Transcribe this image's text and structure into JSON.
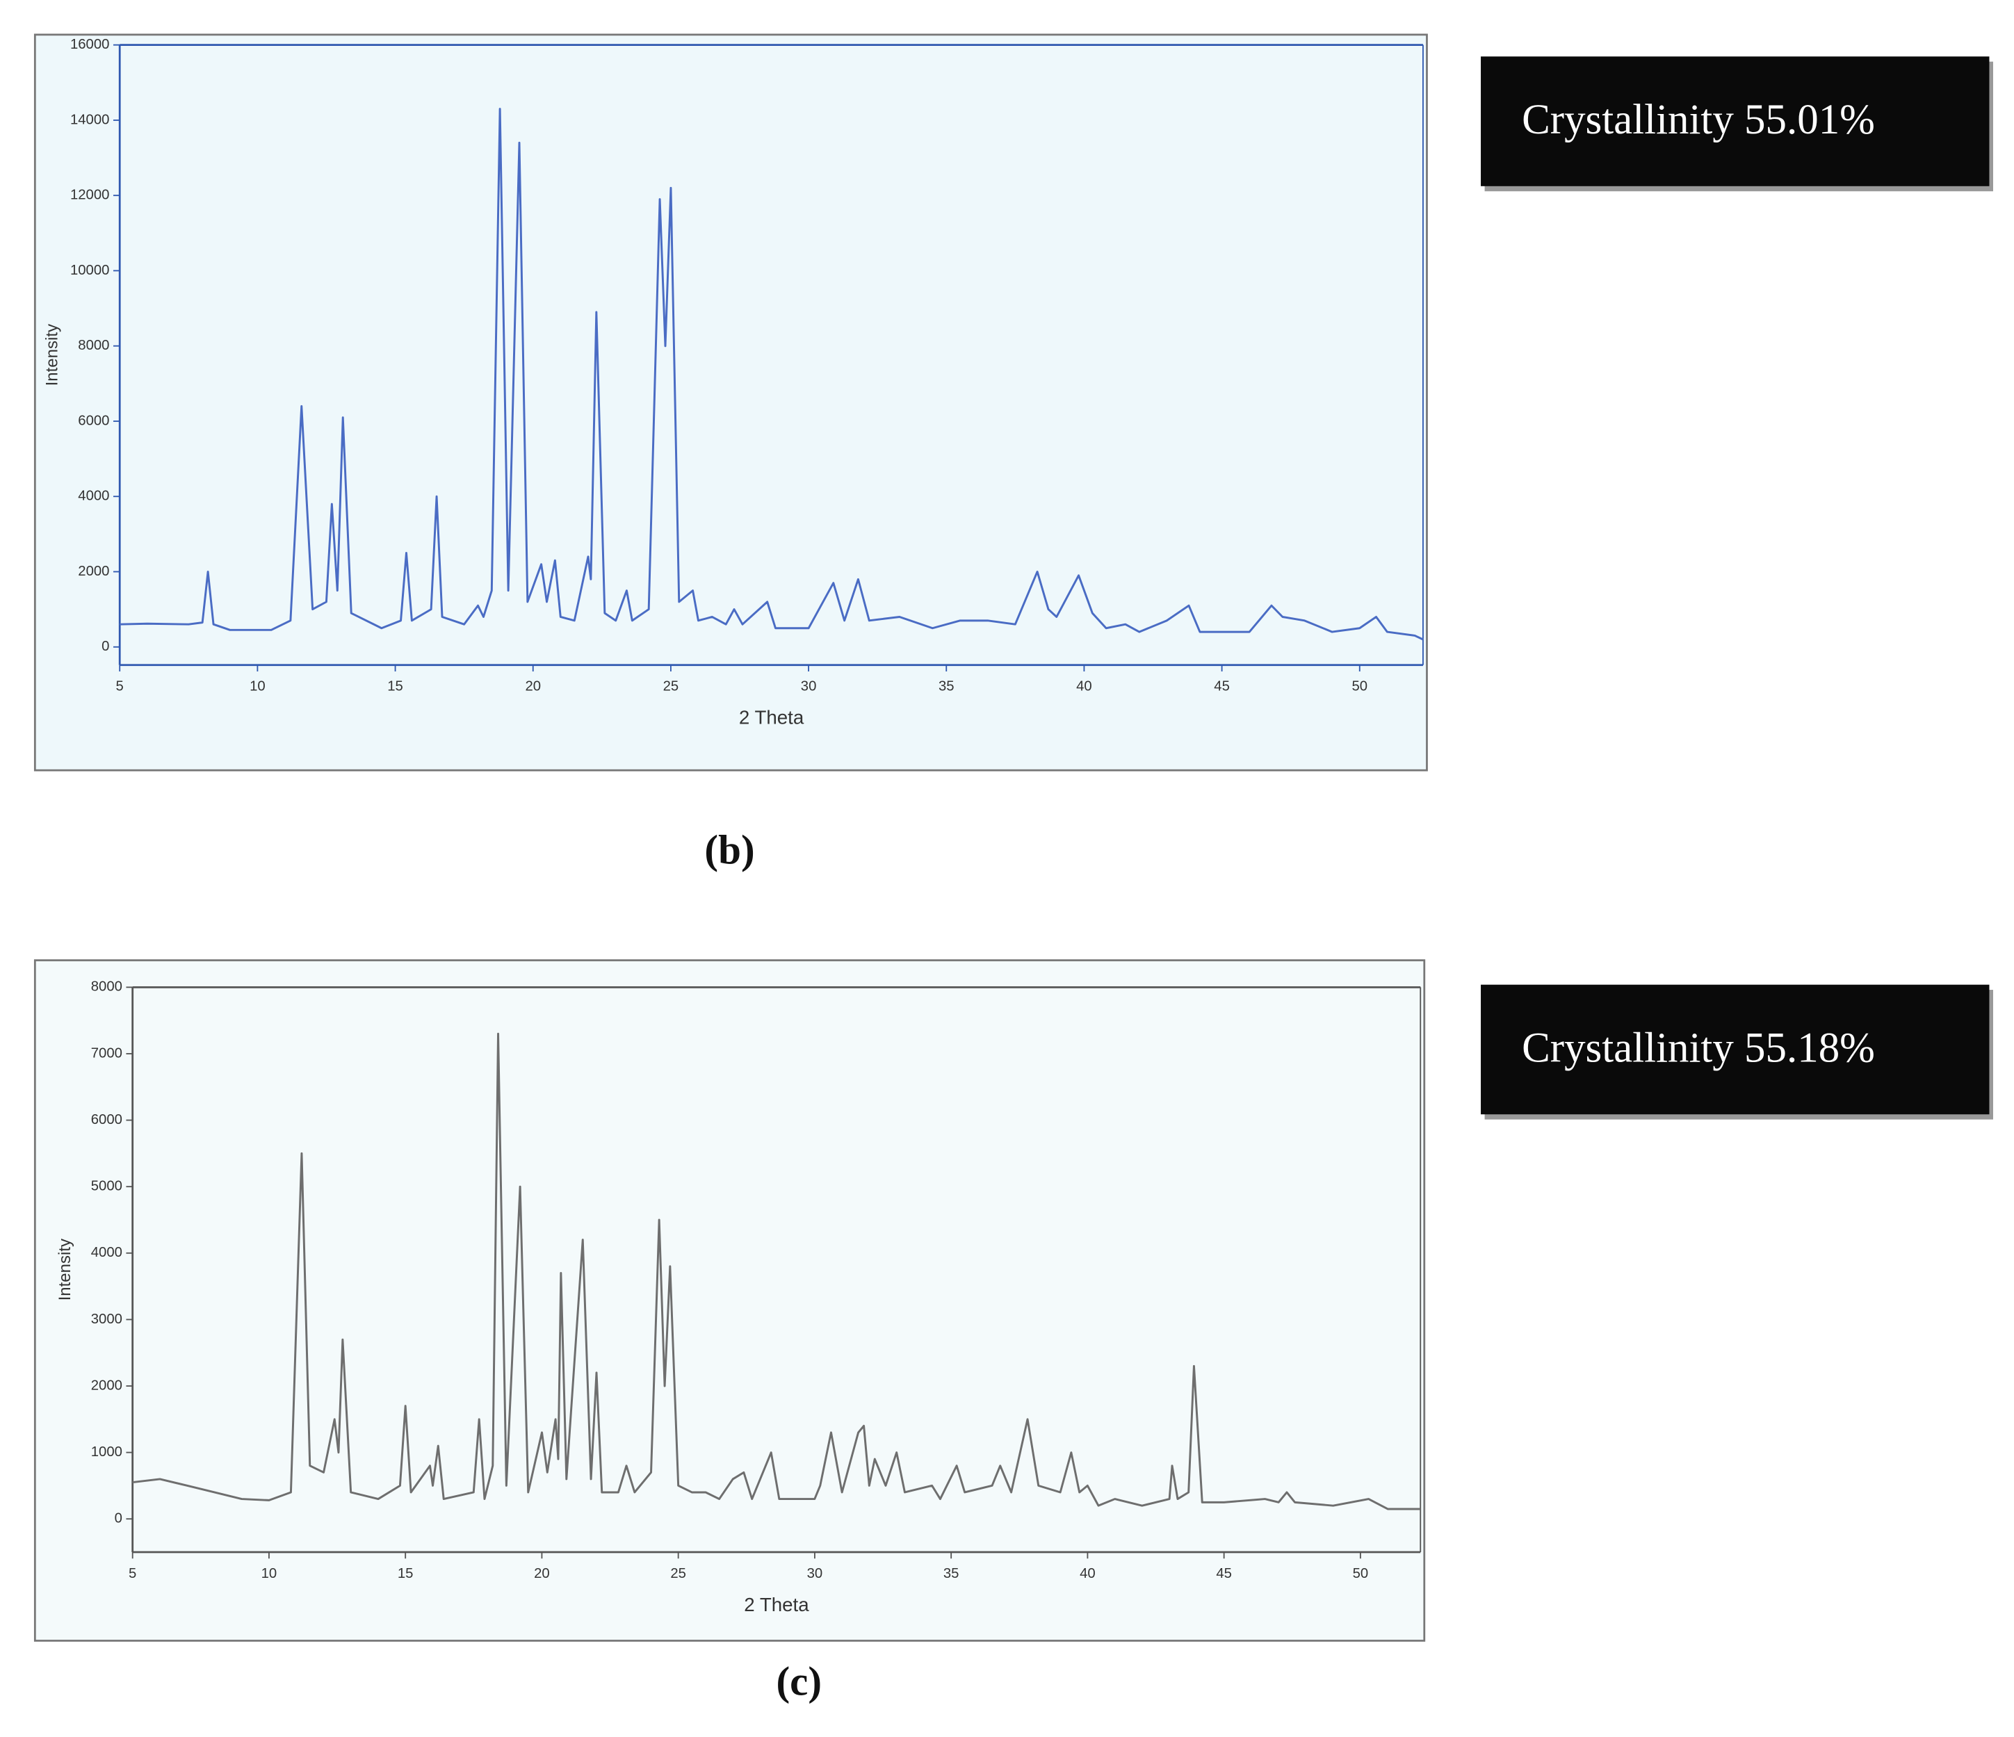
{
  "chart_data": [
    {
      "type": "line",
      "panel_label": "(b)",
      "annotation": "Crystallinity 55.01%",
      "xlabel": "2 Theta",
      "ylabel": "Intensity",
      "xlim": [
        5,
        52.3
      ],
      "ylim": [
        -480,
        16000
      ],
      "xticks": [
        5,
        10,
        15,
        20,
        25,
        30,
        35,
        40,
        45,
        50
      ],
      "yticks": [
        0,
        2000,
        4000,
        6000,
        8000,
        10000,
        12000,
        14000,
        16000
      ],
      "color": "#4a6cc4",
      "axis_color": "#2f58b0",
      "background": "#eef8fb",
      "x": [
        5,
        6,
        7.5,
        8.0,
        8.2,
        8.4,
        9,
        10.5,
        11.2,
        11.6,
        12.0,
        12.5,
        12.7,
        12.9,
        13.1,
        13.4,
        14.5,
        15.2,
        15.4,
        15.6,
        16.3,
        16.5,
        16.7,
        17.5,
        18.0,
        18.2,
        18.5,
        18.8,
        19.1,
        19.5,
        19.8,
        20.3,
        20.5,
        20.8,
        21.0,
        21.5,
        22.0,
        22.1,
        22.3,
        22.6,
        23.0,
        23.4,
        23.6,
        24.2,
        24.6,
        24.8,
        25.0,
        25.3,
        25.8,
        26.0,
        26.5,
        27.0,
        27.3,
        27.6,
        28.5,
        28.8,
        30.0,
        30.9,
        31.3,
        31.8,
        32.2,
        33.3,
        34.5,
        35.5,
        36.5,
        37.5,
        38.3,
        38.7,
        39.0,
        39.8,
        40.3,
        40.8,
        41.5,
        42.0,
        43.0,
        43.8,
        44.2,
        46.0,
        46.8,
        47.2,
        48.0,
        49.0,
        50.0,
        50.6,
        51.0,
        52.0,
        52.3
      ],
      "values": [
        600,
        620,
        600,
        650,
        2000,
        600,
        450,
        450,
        700,
        6400,
        1000,
        1200,
        3800,
        1500,
        6100,
        900,
        500,
        700,
        2500,
        700,
        1000,
        4000,
        800,
        600,
        1100,
        800,
        1500,
        14300,
        1500,
        13400,
        1200,
        2200,
        1200,
        2300,
        800,
        700,
        2400,
        1800,
        8900,
        900,
        700,
        1500,
        700,
        1000,
        11900,
        8000,
        12200,
        1200,
        1500,
        700,
        800,
        600,
        1000,
        600,
        1200,
        500,
        500,
        1700,
        700,
        1800,
        700,
        800,
        500,
        700,
        700,
        600,
        2000,
        1000,
        800,
        1900,
        900,
        500,
        600,
        400,
        700,
        1100,
        400,
        400,
        1100,
        800,
        700,
        400,
        500,
        800,
        400,
        300,
        200
      ]
    },
    {
      "type": "line",
      "panel_label": "(c)",
      "annotation": "Crystallinity 55.18%",
      "xlabel": "2 Theta",
      "ylabel": "Intensity",
      "xlim": [
        5,
        52.2
      ],
      "ylim": [
        -500,
        8000
      ],
      "xticks": [
        5,
        10,
        15,
        20,
        25,
        30,
        35,
        40,
        45,
        50
      ],
      "yticks": [
        0,
        1000,
        2000,
        3000,
        4000,
        5000,
        6000,
        7000,
        8000
      ],
      "color": "#6e6e6e",
      "axis_color": "#555555",
      "background": "#f4fafb",
      "x": [
        5,
        6,
        7,
        8,
        9,
        10,
        10.8,
        11.2,
        11.5,
        12.0,
        12.4,
        12.55,
        12.7,
        13.0,
        14.0,
        14.8,
        15.0,
        15.2,
        15.9,
        16.0,
        16.2,
        16.4,
        17.5,
        17.7,
        17.9,
        18.2,
        18.4,
        18.7,
        19.2,
        19.5,
        20.0,
        20.2,
        20.5,
        20.6,
        20.7,
        20.9,
        21.5,
        21.8,
        22.0,
        22.2,
        22.8,
        23.1,
        23.4,
        24.0,
        24.3,
        24.5,
        24.7,
        25.0,
        25.5,
        26.0,
        26.5,
        27.0,
        27.4,
        27.7,
        28.4,
        28.7,
        30.0,
        30.2,
        30.6,
        31.0,
        31.6,
        31.8,
        32.0,
        32.2,
        32.6,
        33.0,
        33.3,
        34.3,
        34.6,
        35.2,
        35.5,
        36.5,
        36.8,
        37.2,
        37.8,
        38.2,
        39.0,
        39.4,
        39.7,
        40.0,
        40.4,
        41.0,
        42.0,
        43.0,
        43.1,
        43.3,
        43.7,
        43.9,
        44.2,
        45,
        46.5,
        47.0,
        47.3,
        47.6,
        49.0,
        50.3,
        51.0,
        52.2
      ],
      "values": [
        550,
        600,
        500,
        400,
        300,
        280,
        400,
        5500,
        800,
        700,
        1500,
        1000,
        2700,
        400,
        300,
        500,
        1700,
        400,
        800,
        500,
        1100,
        300,
        400,
        1500,
        300,
        800,
        7300,
        500,
        5000,
        400,
        1300,
        700,
        1500,
        900,
        3700,
        600,
        4200,
        600,
        2200,
        400,
        400,
        800,
        400,
        700,
        4500,
        2000,
        3800,
        500,
        400,
        400,
        300,
        600,
        700,
        300,
        1000,
        300,
        300,
        500,
        1300,
        400,
        1300,
        1400,
        500,
        900,
        500,
        1000,
        400,
        500,
        300,
        800,
        400,
        500,
        800,
        400,
        1500,
        500,
        400,
        1000,
        400,
        500,
        200,
        300,
        200,
        300,
        800,
        300,
        400,
        2300,
        250,
        250,
        300,
        250,
        400,
        250,
        200,
        300,
        150,
        150
      ]
    }
  ]
}
